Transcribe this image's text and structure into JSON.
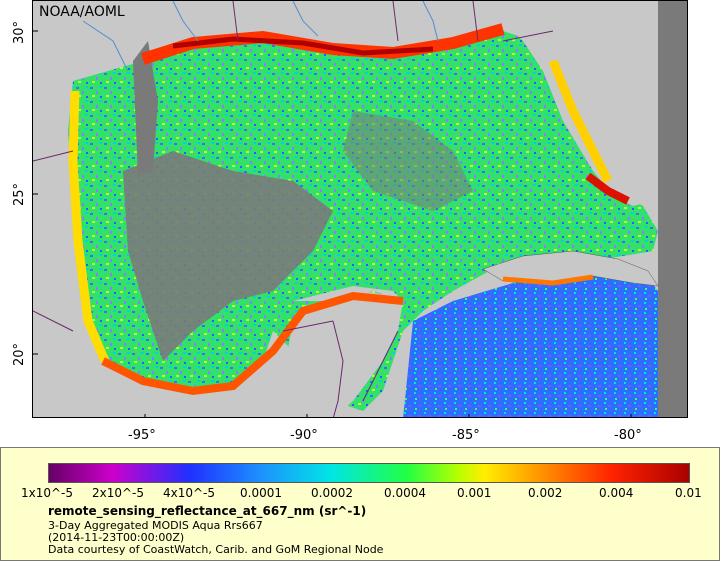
{
  "map": {
    "credit": "NOAA/AOML",
    "lat_ticks": [
      "30°",
      "25°",
      "20°"
    ],
    "lon_ticks": [
      "-95°",
      "-90°",
      "-85°",
      "-80°"
    ],
    "colors": {
      "land": "#c8c8c8",
      "no_data": "#7a7a7a",
      "borders": "#6a2a6a",
      "rivers": "#4f8fcf"
    }
  },
  "legend": {
    "colorbar_labels": [
      "1x10^-5",
      "2x10^-5",
      "4x10^-5",
      "0.0001",
      "0.0002",
      "0.0004",
      "0.001",
      "0.002",
      "0.004",
      "0.01"
    ],
    "variable": "remote_sensing_reflectance_at_667_nm (sr^-1)",
    "product": "3-Day Aggregated MODIS Aqua Rrs667",
    "time": "(2014-11-23T00:00:00Z)",
    "courtesy": "Data courtesy of CoastWatch, Carib. and GoM Regional Node"
  }
}
